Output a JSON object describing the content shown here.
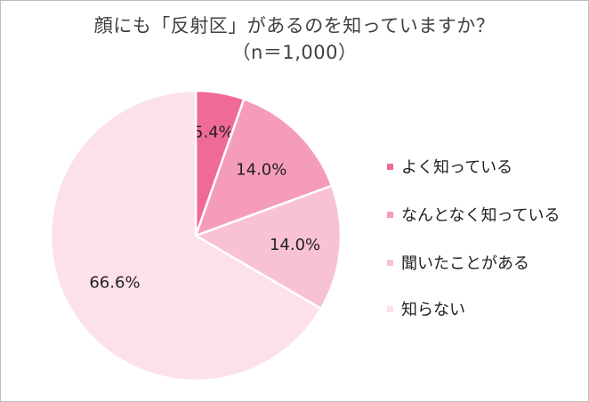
{
  "chart_data": {
    "type": "pie",
    "title": "顔にも「反射区」があるのを知っていますか？",
    "subtitle": "（n＝1,000）",
    "categories": [
      "よく知っている",
      "なんとなく知っている",
      "聞いたことがある",
      "知らない"
    ],
    "values": [
      5.4,
      14.0,
      14.0,
      66.6
    ],
    "data_labels": [
      "5.4%",
      "14.0%",
      "14.0%",
      "66.6%"
    ],
    "colors": [
      "#f06a96",
      "#f59cbc",
      "#f9c2d4",
      "#fde1ea"
    ],
    "legend_placement": "right"
  }
}
